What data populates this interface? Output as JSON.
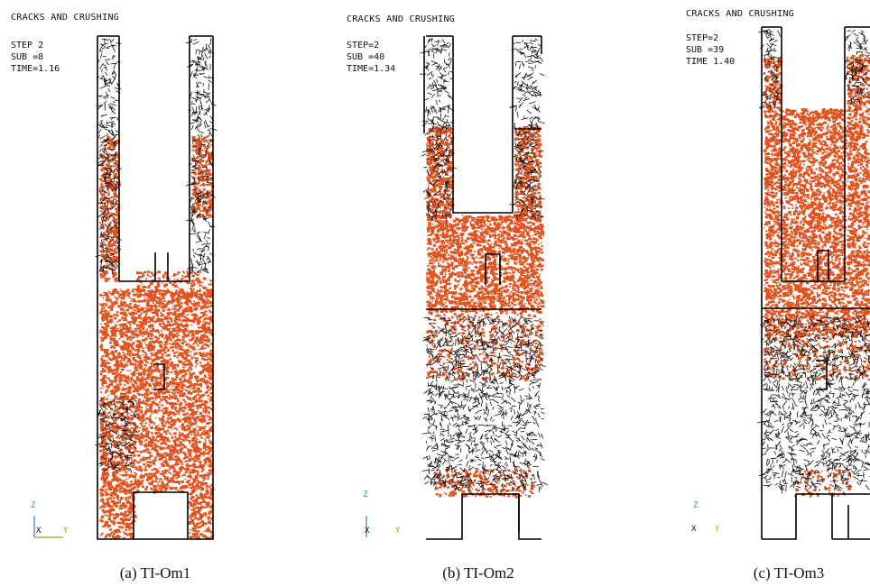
{
  "panels": [
    {
      "header": "CRACKS AND CRUSHING",
      "step": "STEP 2",
      "sub": "SUB =8",
      "time": "TIME=1.16",
      "caption": "(a) TI-Om1",
      "axes": {
        "z": "Z",
        "x": "X",
        "y": "Y"
      }
    },
    {
      "header": "CRACKS AND CRUSHING",
      "step": "STEP=2",
      "sub": "SUB =40",
      "time": "TIME=1.34",
      "caption": "(b) TI-Om2",
      "axes": {
        "z": "Z",
        "x": "X",
        "y": "Y"
      }
    },
    {
      "header": "CRACKS AND CRUSHING",
      "step": "STEP=2",
      "sub": "SUB =39",
      "time": "TIME 1.40",
      "caption": "(c) TI-Om3",
      "axes": {
        "z": "Z",
        "x": "X",
        "y": "Y"
      }
    }
  ],
  "colors": {
    "crushing": "#e0531f",
    "cracks": "#111111",
    "outline": "#000000",
    "z_axis": "#2a7fd4",
    "y_axis": "#9aa81a"
  }
}
